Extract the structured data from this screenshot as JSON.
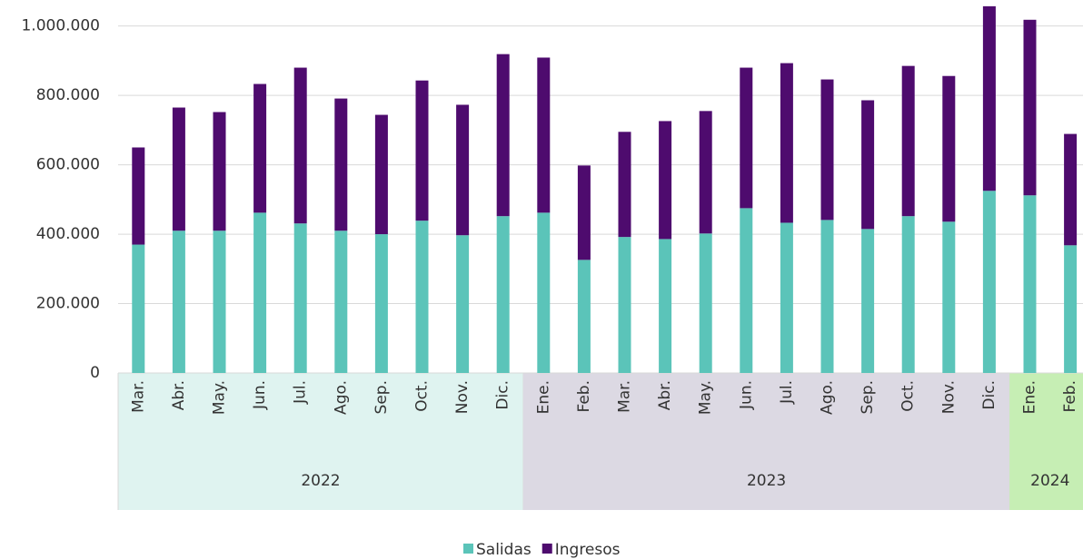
{
  "chart_data": {
    "type": "stacked_bar",
    "groups": [
      {
        "label": "2022",
        "color": "#dff3f0",
        "categories": [
          "Mar.",
          "Abr.",
          "May.",
          "Jun.",
          "Jul.",
          "Ago.",
          "Sep.",
          "Oct.",
          "Nov.",
          "Dic."
        ]
      },
      {
        "label": "2023",
        "color": "#dcd9e3",
        "categories": [
          "Ene.",
          "Feb.",
          "Mar.",
          "Abr.",
          "May.",
          "Jun.",
          "Jul.",
          "Ago.",
          "Sep.",
          "Oct.",
          "Nov.",
          "Dic."
        ]
      },
      {
        "label": "2024",
        "color": "#c6eeb4",
        "categories": [
          "Ene.",
          "Feb."
        ]
      }
    ],
    "series": [
      {
        "name": "Salidas",
        "color": "#5bc4b9",
        "values": [
          370000,
          410000,
          410000,
          462000,
          431000,
          410000,
          400000,
          439000,
          397000,
          452000,
          462000,
          326000,
          392000,
          386000,
          402000,
          475000,
          433000,
          441000,
          415000,
          452000,
          436000,
          525000,
          512000,
          368000
        ]
      },
      {
        "name": "Ingresos",
        "color": "#4e0b6e",
        "values": [
          280000,
          355000,
          342000,
          371000,
          449000,
          381000,
          344000,
          404000,
          376000,
          467000,
          447000,
          272000,
          303000,
          340000,
          353000,
          405000,
          460000,
          405000,
          371000,
          433000,
          420000,
          532000,
          506000,
          321000
        ]
      }
    ],
    "ylim": [
      0,
      1075000
    ],
    "yticks": [
      0,
      {
        "value": 200000,
        "label": "200.000"
      },
      {
        "value": 400000,
        "label": "400.000"
      },
      {
        "value": 600000,
        "label": "600.000"
      },
      {
        "value": 800000,
        "label": "800.000"
      },
      {
        "value": 1000000,
        "label": "1.000.000"
      }
    ],
    "grid": true,
    "legend": "bottom"
  }
}
